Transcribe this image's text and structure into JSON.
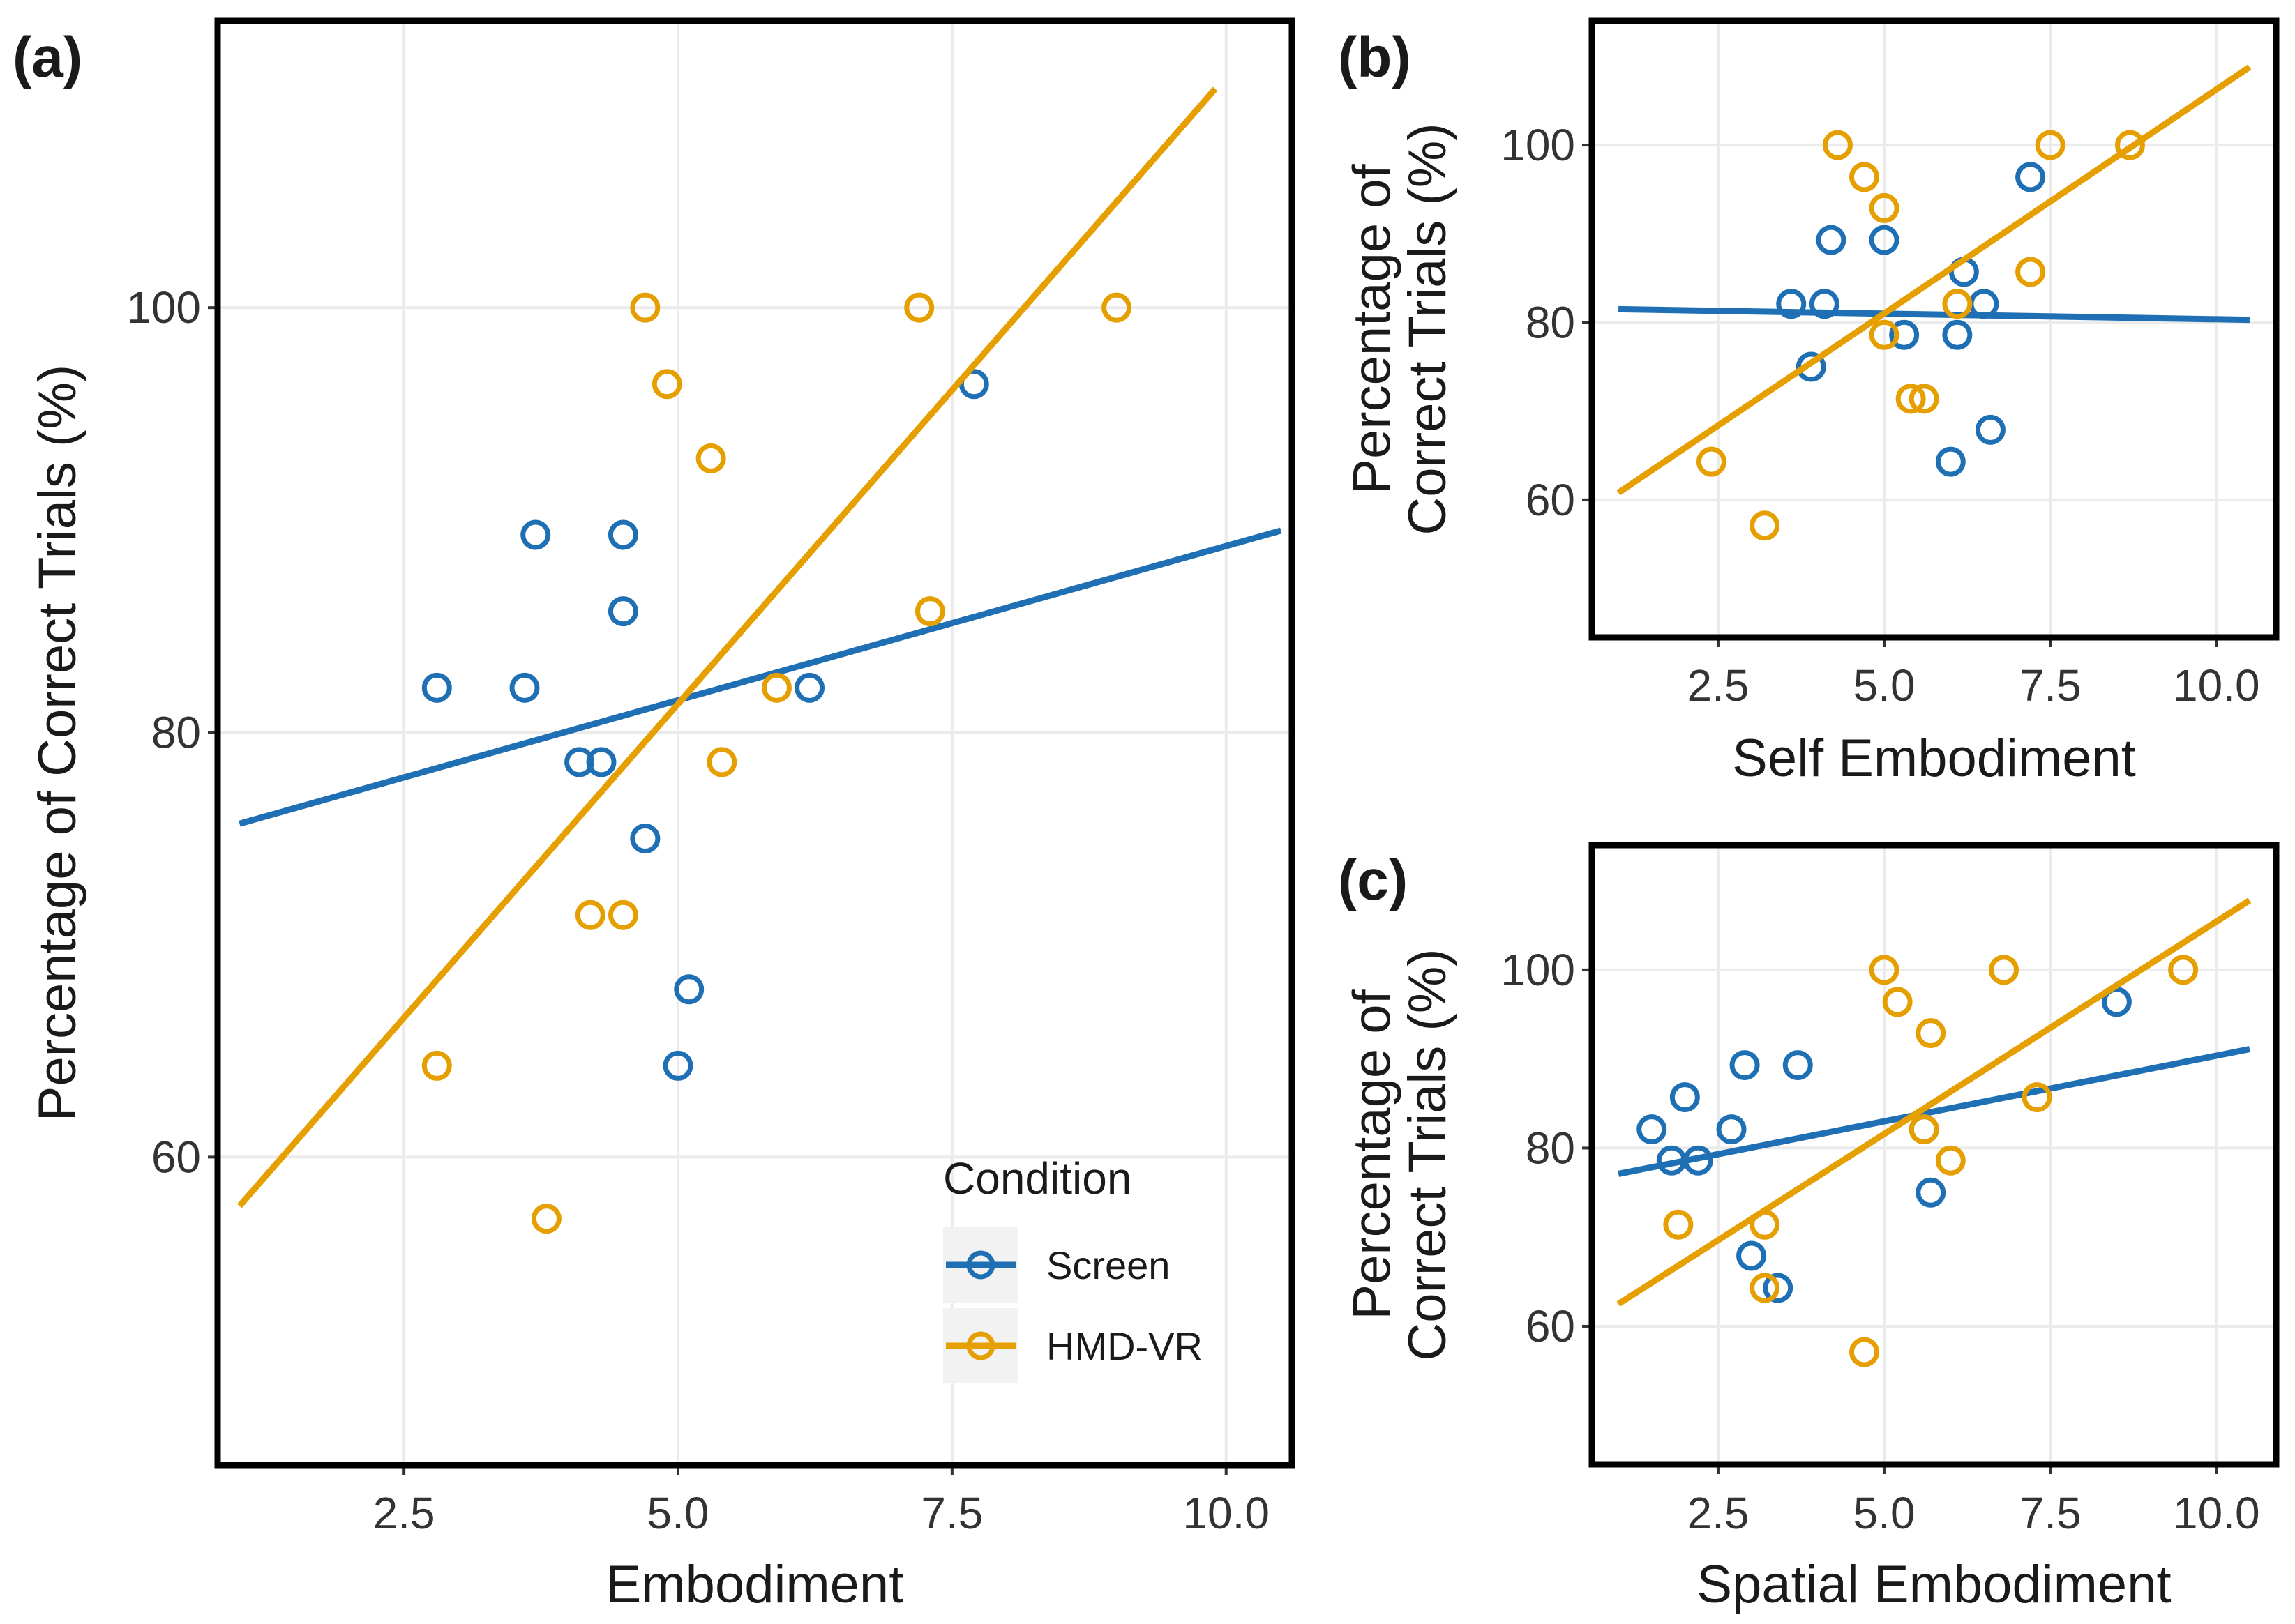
{
  "colors": {
    "screen": "#1f6fb4",
    "hmd": "#e69f00"
  },
  "legend": {
    "title": "Condition",
    "items": [
      {
        "label": "Screen",
        "color": "#1f6fb4"
      },
      {
        "label": "HMD-VR",
        "color": "#e69f00"
      }
    ]
  },
  "chart_data": [
    {
      "panel": "(a)",
      "type": "scatter",
      "xlabel": "Embodiment",
      "ylabel": "Percentage of Correct Trials (%)",
      "xlim": [
        0.8,
        10.6
      ],
      "ylim": [
        45.5,
        113.5
      ],
      "xticks": [
        2.5,
        5.0,
        7.5,
        10.0
      ],
      "xticklabels": [
        "2.5",
        "5.0",
        "7.5",
        "10.0"
      ],
      "yticks": [
        60,
        80,
        100
      ],
      "yticklabels": [
        "60",
        "80",
        "100"
      ],
      "series": [
        {
          "name": "Screen",
          "points": [
            [
              2.8,
              82.1
            ],
            [
              3.6,
              82.1
            ],
            [
              3.7,
              89.3
            ],
            [
              4.1,
              78.6
            ],
            [
              4.3,
              78.6
            ],
            [
              4.5,
              85.7
            ],
            [
              4.5,
              89.3
            ],
            [
              4.7,
              75.0
            ],
            [
              5.0,
              64.3
            ],
            [
              5.1,
              67.9
            ],
            [
              6.2,
              82.1
            ],
            [
              7.7,
              96.4
            ]
          ],
          "fit": [
            [
              1.0,
              75.7
            ],
            [
              10.5,
              89.5
            ]
          ]
        },
        {
          "name": "HMD-VR",
          "points": [
            [
              2.8,
              64.3
            ],
            [
              3.8,
              57.1
            ],
            [
              4.2,
              71.4
            ],
            [
              4.5,
              71.4
            ],
            [
              4.7,
              100.0
            ],
            [
              4.9,
              96.4
            ],
            [
              5.3,
              92.9
            ],
            [
              5.4,
              78.6
            ],
            [
              5.9,
              82.1
            ],
            [
              7.2,
              100.0
            ],
            [
              7.3,
              85.7
            ],
            [
              9.0,
              100.0
            ]
          ],
          "fit": [
            [
              1.0,
              57.7
            ],
            [
              9.9,
              110.3
            ]
          ]
        }
      ]
    },
    {
      "panel": "(b)",
      "type": "scatter",
      "xlabel": "Self Embodiment",
      "ylabel": "Percentage of Correct Trials (%)",
      "xlim": [
        0.6,
        10.9
      ],
      "ylim": [
        44.5,
        114
      ],
      "xticks": [
        2.5,
        5.0,
        7.5,
        10.0
      ],
      "xticklabels": [
        "2.5",
        "5.0",
        "7.5",
        "10.0"
      ],
      "yticks": [
        60,
        80,
        100
      ],
      "yticklabels": [
        "60",
        "80",
        "100"
      ],
      "series": [
        {
          "name": "Screen",
          "points": [
            [
              3.6,
              82.1
            ],
            [
              3.9,
              75.0
            ],
            [
              4.1,
              82.1
            ],
            [
              4.2,
              89.3
            ],
            [
              5.0,
              89.3
            ],
            [
              5.3,
              78.6
            ],
            [
              6.0,
              64.3
            ],
            [
              6.1,
              78.6
            ],
            [
              6.2,
              85.7
            ],
            [
              6.5,
              82.1
            ],
            [
              6.6,
              67.9
            ],
            [
              7.2,
              96.4
            ]
          ],
          "fit": [
            [
              1.0,
              81.5
            ],
            [
              10.5,
              80.3
            ]
          ]
        },
        {
          "name": "HMD-VR",
          "points": [
            [
              2.4,
              64.3
            ],
            [
              3.2,
              57.1
            ],
            [
              4.3,
              100.0
            ],
            [
              4.7,
              96.4
            ],
            [
              5.0,
              92.9
            ],
            [
              5.0,
              78.6
            ],
            [
              5.4,
              71.4
            ],
            [
              5.6,
              71.4
            ],
            [
              6.1,
              82.1
            ],
            [
              7.2,
              85.7
            ],
            [
              7.5,
              100.0
            ],
            [
              8.7,
              100.0
            ]
          ],
          "fit": [
            [
              1.0,
              60.8
            ],
            [
              10.5,
              108.8
            ]
          ]
        }
      ]
    },
    {
      "panel": "(c)",
      "type": "scatter",
      "xlabel": "Spatial Embodiment",
      "ylabel": "Percentage of Correct Trials (%)",
      "xlim": [
        0.6,
        10.9
      ],
      "ylim": [
        44.5,
        114
      ],
      "xticks": [
        2.5,
        5.0,
        7.5,
        10.0
      ],
      "xticklabels": [
        "2.5",
        "5.0",
        "7.5",
        "10.0"
      ],
      "yticks": [
        60,
        80,
        100
      ],
      "yticklabels": [
        "60",
        "80",
        "100"
      ],
      "series": [
        {
          "name": "Screen",
          "points": [
            [
              1.5,
              82.1
            ],
            [
              1.8,
              78.6
            ],
            [
              2.0,
              85.7
            ],
            [
              2.2,
              78.6
            ],
            [
              2.7,
              82.1
            ],
            [
              2.9,
              89.3
            ],
            [
              3.0,
              67.9
            ],
            [
              3.4,
              64.3
            ],
            [
              3.7,
              89.3
            ],
            [
              5.6,
              82.1
            ],
            [
              5.7,
              75.0
            ],
            [
              8.5,
              96.4
            ]
          ],
          "fit": [
            [
              1.0,
              77.1
            ],
            [
              10.5,
              91.1
            ]
          ]
        },
        {
          "name": "HMD-VR",
          "points": [
            [
              1.9,
              71.4
            ],
            [
              3.2,
              71.4
            ],
            [
              3.2,
              64.3
            ],
            [
              4.7,
              57.1
            ],
            [
              5.0,
              100.0
            ],
            [
              5.2,
              96.4
            ],
            [
              5.6,
              82.1
            ],
            [
              5.7,
              92.9
            ],
            [
              6.0,
              78.6
            ],
            [
              6.8,
              100.0
            ],
            [
              7.3,
              85.7
            ],
            [
              9.5,
              100.0
            ]
          ],
          "fit": [
            [
              1.0,
              62.5
            ],
            [
              10.5,
              107.8
            ]
          ]
        }
      ]
    }
  ]
}
